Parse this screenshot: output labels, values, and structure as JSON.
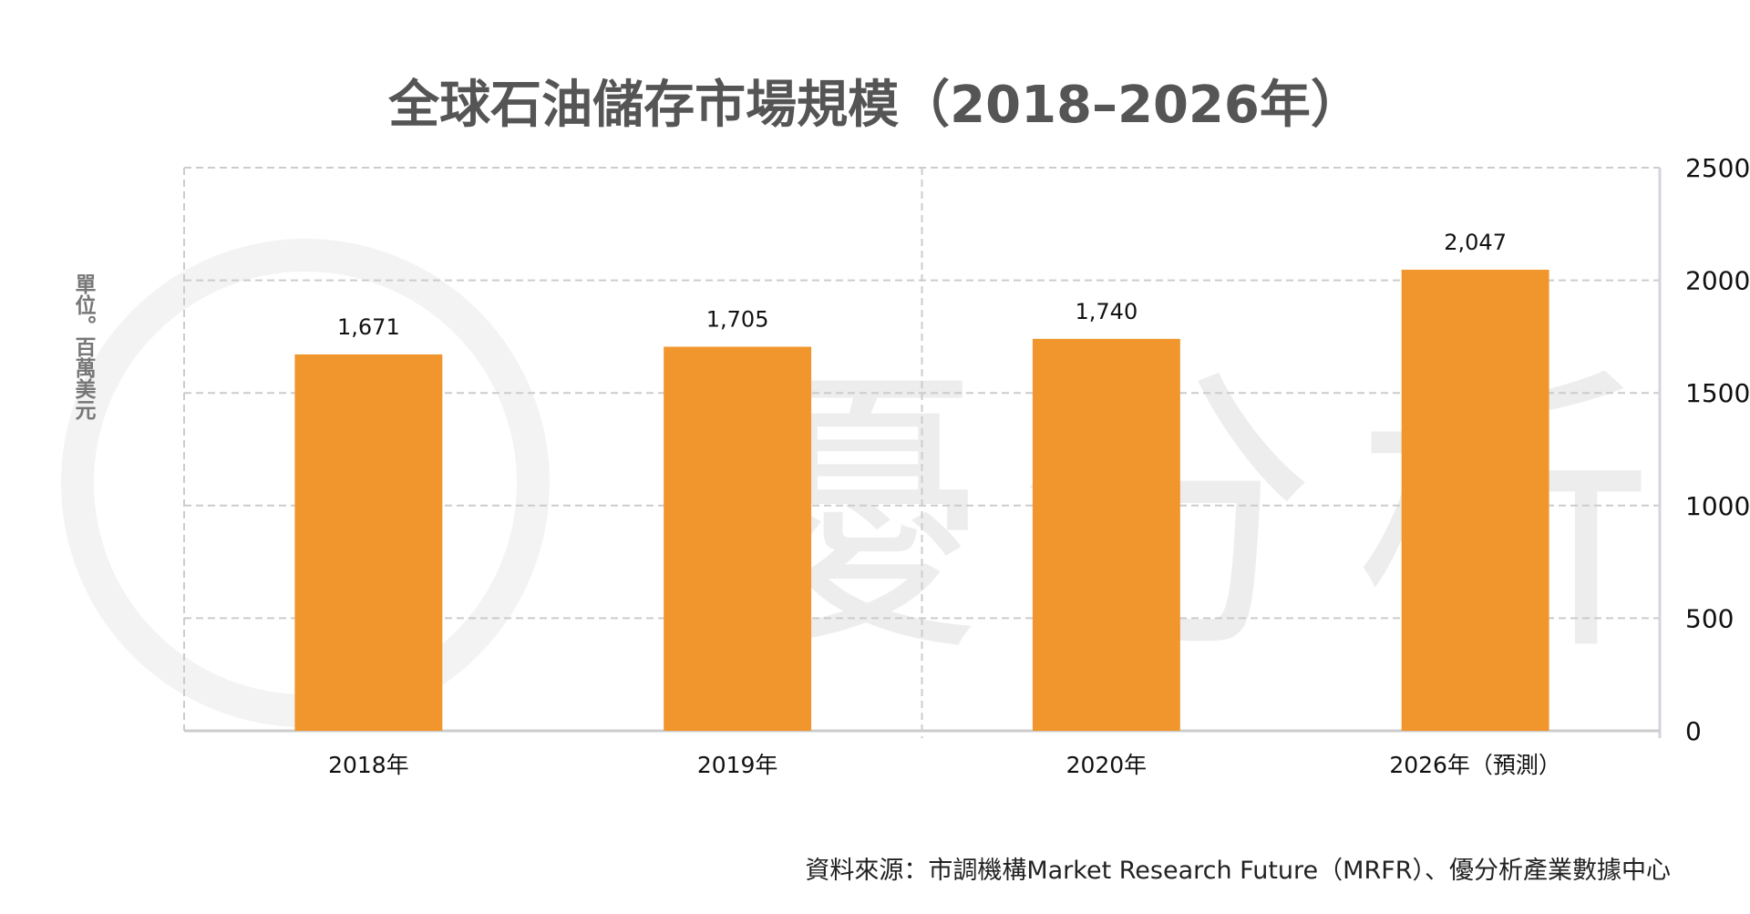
{
  "chart_data": {
    "type": "bar",
    "title": "全球石油儲存市場規模（2018–2026年）",
    "ylabel": "單位。百萬美元",
    "categories": [
      "2018年",
      "2019年",
      "2020年",
      "2026年（預測）"
    ],
    "values": [
      1671,
      1705,
      1740,
      2047
    ],
    "data_labels": [
      "1,671",
      "1,705",
      "1,740",
      "2,047"
    ],
    "ylim": [
      0,
      2500
    ],
    "yticks": [
      0,
      500,
      1000,
      1500,
      2000,
      2500
    ],
    "y_axis_side": "right",
    "grid": true,
    "bar_color": "#F0962D"
  },
  "source": "資料來源：市調機構Market Research Future（MRFR）、優分析產業數據中心",
  "watermark": "優分析"
}
